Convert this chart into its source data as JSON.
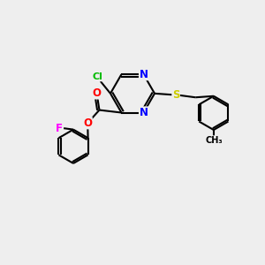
{
  "bg_color": "#eeeeee",
  "bond_color": "#000000",
  "bond_width": 1.5,
  "atom_colors": {
    "C": "#000000",
    "N": "#0000ff",
    "O": "#ff0000",
    "S": "#cccc00",
    "Cl": "#00bb00",
    "F": "#ff00ff"
  },
  "font_size": 8.5
}
